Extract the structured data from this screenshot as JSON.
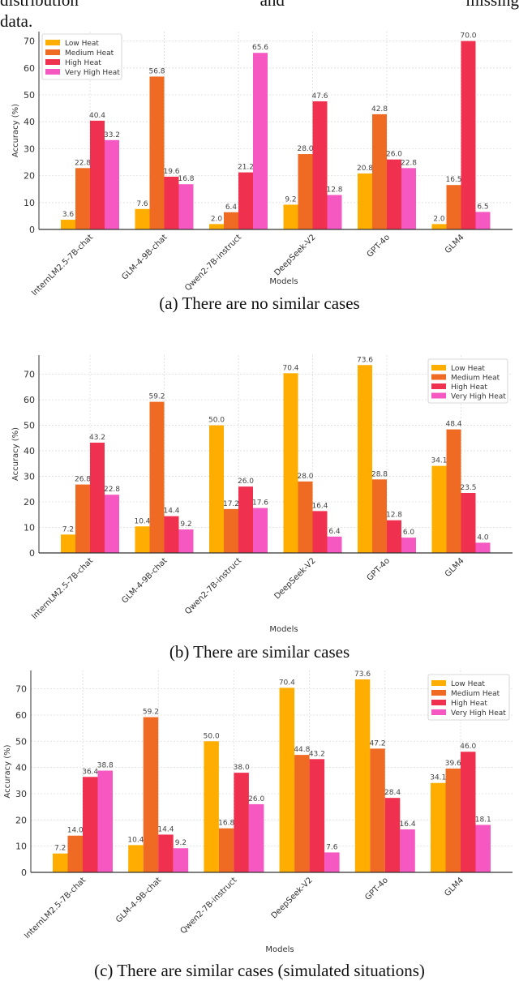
{
  "page_text": {
    "line1_words": [
      "distribution",
      "and",
      "missing"
    ],
    "line2": "data."
  },
  "colors": {
    "Low Heat": "#FFAE00",
    "Medium Heat": "#EF6A22",
    "High Heat": "#F0304F",
    "Very High Heat": "#F558C0"
  },
  "chart_data": [
    {
      "type": "bar",
      "caption": "(a) There are no similar cases",
      "xlabel": "Models",
      "ylabel": "Accuracy (%)",
      "ylim": [
        0,
        73.5
      ],
      "yticks": [
        0,
        10,
        20,
        30,
        40,
        50,
        60,
        70
      ],
      "grid": true,
      "legend_placement": "top-left",
      "categories": [
        "InternLM2.5-7B-chat",
        "GLM-4-9B-chat",
        "Qwen2-7B-instruct",
        "DeepSeek-V2",
        "GPT-4o",
        "GLM4"
      ],
      "series": [
        {
          "name": "Low Heat",
          "values": [
            3.6,
            7.6,
            2.0,
            9.2,
            20.8,
            2.0
          ]
        },
        {
          "name": "Medium Heat",
          "values": [
            22.8,
            56.8,
            6.4,
            28.0,
            42.8,
            16.5
          ]
        },
        {
          "name": "High Heat",
          "values": [
            40.4,
            19.6,
            21.2,
            47.6,
            26.0,
            70.0
          ]
        },
        {
          "name": "Very High Heat",
          "values": [
            33.2,
            16.8,
            65.6,
            12.8,
            22.8,
            6.5
          ]
        }
      ]
    },
    {
      "type": "bar",
      "caption": "(b) There are similar cases",
      "xlabel": "Models",
      "ylabel": "Accuracy (%)",
      "ylim": [
        0,
        77.5
      ],
      "yticks": [
        0,
        10,
        20,
        30,
        40,
        50,
        60,
        70
      ],
      "grid": true,
      "legend_placement": "top-right",
      "categories": [
        "InternLM2.5-7B-chat",
        "GLM-4-9B-chat",
        "Qwen2-7B-instruct",
        "DeepSeek-V2",
        "GPT-4o",
        "GLM4"
      ],
      "series": [
        {
          "name": "Low Heat",
          "values": [
            7.2,
            10.4,
            50.0,
            70.4,
            73.6,
            34.1
          ]
        },
        {
          "name": "Medium Heat",
          "values": [
            26.8,
            59.2,
            17.2,
            28.0,
            28.8,
            48.4
          ]
        },
        {
          "name": "High Heat",
          "values": [
            43.2,
            14.4,
            26.0,
            16.4,
            12.8,
            23.5
          ]
        },
        {
          "name": "Very High Heat",
          "values": [
            22.8,
            9.2,
            17.6,
            6.4,
            6.0,
            4.0
          ]
        }
      ]
    },
    {
      "type": "bar",
      "caption": "(c) There are similar cases (simulated situations)",
      "xlabel": "Models",
      "ylabel": "Accuracy (%)",
      "ylim": [
        0,
        77
      ],
      "yticks": [
        0,
        10,
        20,
        30,
        40,
        50,
        60,
        70
      ],
      "grid": true,
      "legend_placement": "top-right",
      "categories": [
        "InternLM2.5-7B-chat",
        "GLM-4-9B-chat",
        "Qwen2-7B-instruct",
        "DeepSeek-V2",
        "GPT-4o",
        "GLM4"
      ],
      "series": [
        {
          "name": "Low Heat",
          "values": [
            7.2,
            10.4,
            50.0,
            70.4,
            73.6,
            34.1
          ]
        },
        {
          "name": "Medium Heat",
          "values": [
            14.0,
            59.2,
            16.8,
            44.8,
            47.2,
            39.6
          ]
        },
        {
          "name": "High Heat",
          "values": [
            36.4,
            14.4,
            38.0,
            43.2,
            28.4,
            46.0
          ]
        },
        {
          "name": "Very High Heat",
          "values": [
            38.8,
            9.2,
            26.0,
            7.6,
            16.4,
            18.1
          ]
        }
      ]
    }
  ]
}
